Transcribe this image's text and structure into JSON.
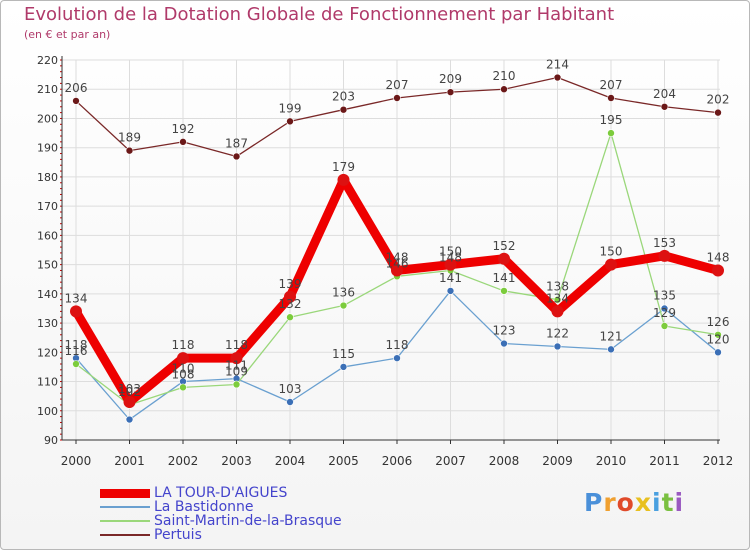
{
  "header": {
    "title": "Evolution de la Dotation Globale de Fonctionnement par Habitant",
    "subtitle": "(en € et par an)"
  },
  "colors": {
    "title": "#b03a6a",
    "axis": "#333333",
    "grid": "#dddddd",
    "tick_red": "#cc0000",
    "legend_text": "#4444cc"
  },
  "chart_data": {
    "type": "line",
    "title": "Evolution de la Dotation Globale de Fonctionnement par Habitant",
    "subtitle": "(en € et par an)",
    "xlabel": "",
    "ylabel": "",
    "ylim": [
      90,
      220
    ],
    "yticks": [
      90,
      100,
      110,
      120,
      130,
      140,
      150,
      160,
      170,
      180,
      190,
      200,
      210,
      220
    ],
    "grid": true,
    "legend_position": "bottom-left",
    "x": [
      "2000",
      "2001",
      "2002",
      "2003",
      "2004",
      "2005",
      "2006",
      "2007",
      "2008",
      "2009",
      "2010",
      "2011",
      "2012"
    ],
    "series": [
      {
        "name": "LA TOUR-D'AIGUES",
        "color": "#ee0000",
        "dot": "#dd1111",
        "emphasis": true,
        "values": [
          134,
          103,
          118,
          118,
          139,
          179,
          148,
          150,
          152,
          134,
          150,
          153,
          148
        ]
      },
      {
        "name": "La Bastidonne",
        "color": "#6aa0d0",
        "dot": "#3b6fb6",
        "emphasis": false,
        "values": [
          118,
          97,
          110,
          111,
          103,
          115,
          118,
          141,
          123,
          122,
          121,
          135,
          120
        ]
      },
      {
        "name": "Saint-Martin-de-la-Brasque",
        "color": "#9ad77a",
        "dot": "#7ccc3c",
        "emphasis": false,
        "values": [
          116,
          102,
          108,
          109,
          132,
          136,
          146,
          148,
          141,
          138,
          195,
          129,
          126
        ]
      },
      {
        "name": "Pertuis",
        "color": "#7a2828",
        "dot": "#6b1818",
        "emphasis": false,
        "values": [
          206,
          189,
          192,
          187,
          199,
          203,
          207,
          209,
          210,
          214,
          207,
          204,
          202
        ]
      }
    ],
    "data_labels": [
      {
        "series": 0,
        "values": [
          "134",
          "103",
          "118",
          "118",
          "139",
          "179",
          "148",
          "150",
          "152",
          "134",
          "150",
          "153",
          "148"
        ]
      },
      {
        "series": 1,
        "values": [
          "118",
          "",
          "110",
          "111",
          "103",
          "115",
          "118",
          "141",
          "123",
          "122",
          "121",
          "135",
          "120"
        ]
      },
      {
        "series": 2,
        "values": [
          "116",
          "102",
          "108",
          "109",
          "132",
          "136",
          "146",
          "148",
          "141",
          "138",
          "195",
          "129",
          "126"
        ]
      },
      {
        "series": 3,
        "values": [
          "206",
          "189",
          "192",
          "187",
          "199",
          "203",
          "207",
          "209",
          "210",
          "214",
          "207",
          "204",
          "202"
        ]
      }
    ]
  },
  "legend": {
    "items": [
      {
        "label": "LA TOUR-D'AIGUES",
        "color": "#ee0000"
      },
      {
        "label": "La Bastidonne",
        "color": "#6aa0d0"
      },
      {
        "label": "Saint-Martin-de-la-Brasque",
        "color": "#9ad77a"
      },
      {
        "label": "Pertuis",
        "color": "#7a2828"
      }
    ]
  },
  "logo": {
    "letters": [
      {
        "ch": "P",
        "color": "#4a90d9"
      },
      {
        "ch": "r",
        "color": "#f0a030"
      },
      {
        "ch": "o",
        "color": "#e04a2a"
      },
      {
        "ch": "x",
        "color": "#e8c020"
      },
      {
        "ch": "i",
        "color": "#4aa0e0"
      },
      {
        "ch": "t",
        "color": "#7ac040"
      },
      {
        "ch": "i",
        "color": "#9a5ac0"
      }
    ]
  }
}
